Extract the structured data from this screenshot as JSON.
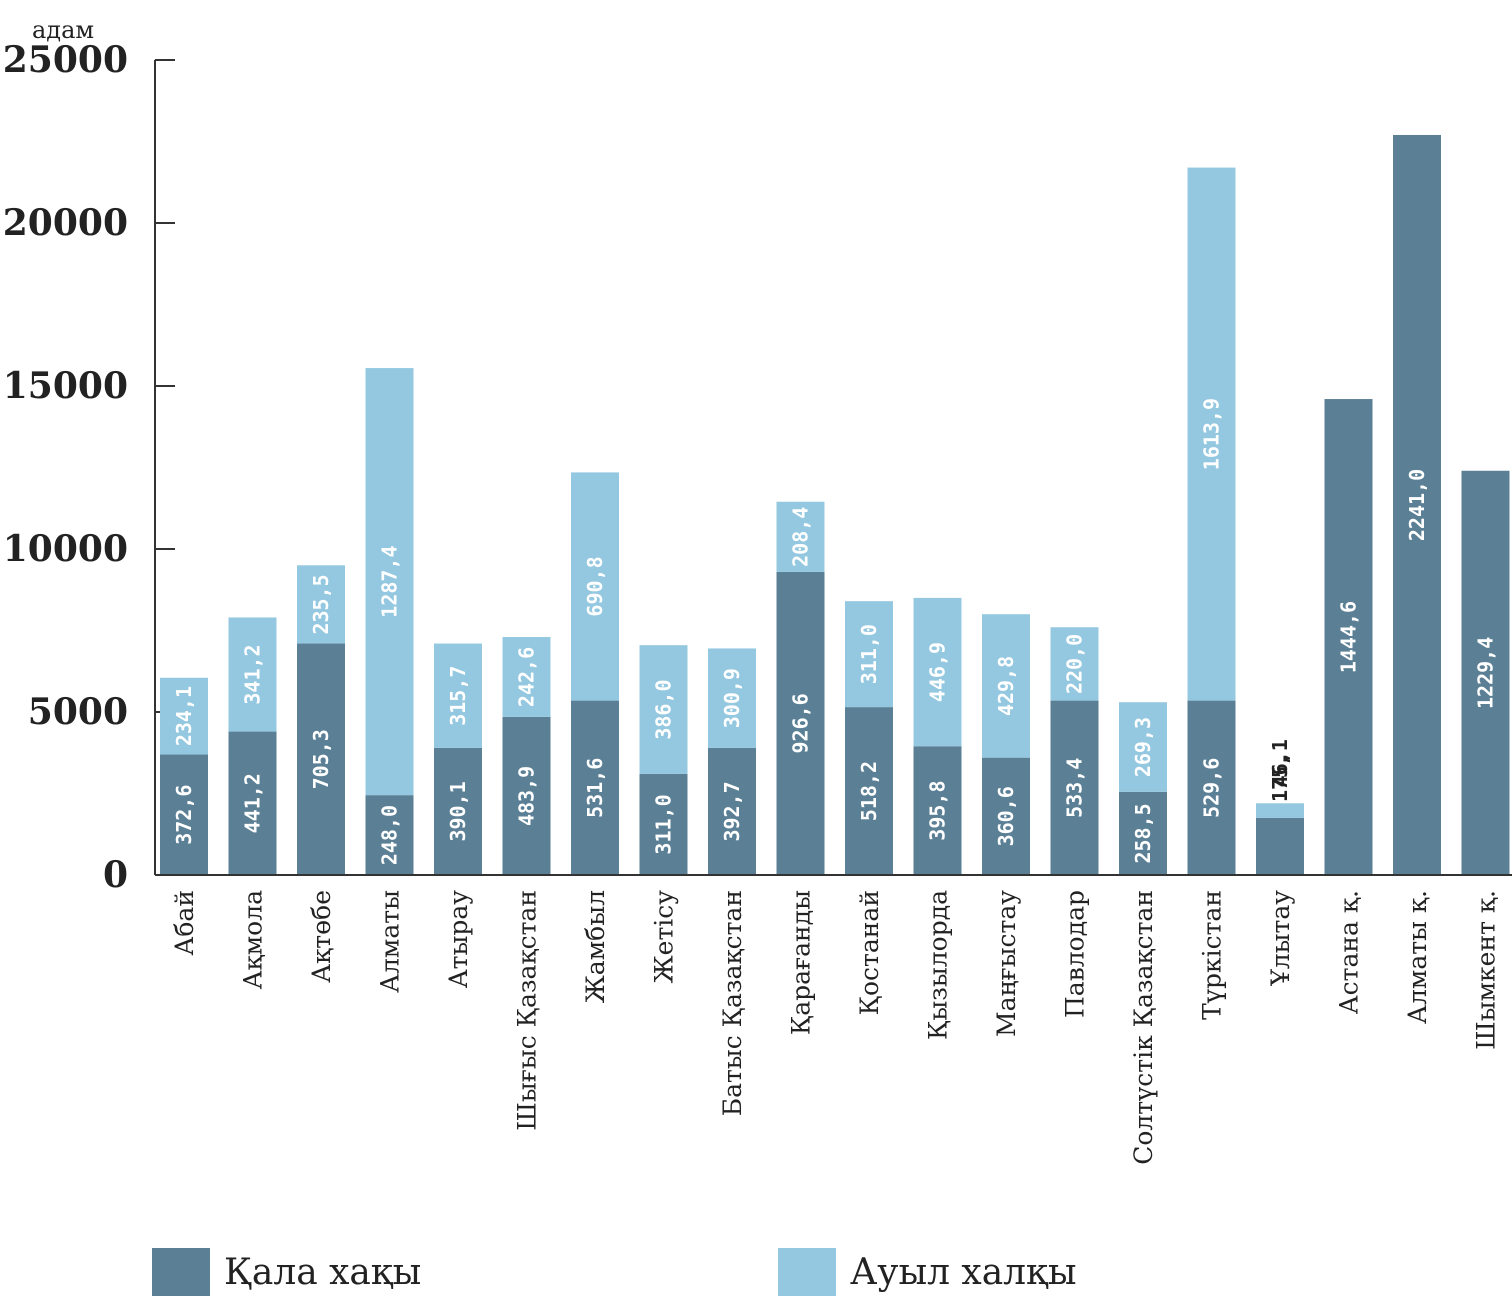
{
  "chart_data": {
    "type": "bar",
    "stacked": true,
    "unit_label": "адам",
    "ylim": [
      0,
      25000
    ],
    "y_ticks": [
      0,
      5000,
      10000,
      15000,
      20000,
      25000
    ],
    "grid": false,
    "legend_position": "bottom",
    "categories": [
      "Абай",
      "Ақмола",
      "Ақтөбе",
      "Алматы",
      "Атырау",
      "Шығыс Қазақстан",
      "Жамбыл",
      "Жетісу",
      "Батыс Қазақстан",
      "Қарағанды",
      "Қостанай",
      "Қызылорда",
      "Маңғыстау",
      "Павлодар",
      "Солтүстік Қазақстан",
      "Түркістан",
      "Ұлытау",
      "Астана қ.",
      "Алматы қ.",
      "Шымкент қ."
    ],
    "series": [
      {
        "name": "Қала хақы",
        "color": "#5b8096",
        "values": [
          3700,
          4400,
          7100,
          2450,
          3900,
          4850,
          5350,
          3100,
          3900,
          9300,
          5150,
          3950,
          3600,
          5350,
          2550,
          5350,
          1750,
          14600,
          22700,
          12400
        ],
        "labels": [
          "372,6",
          "441,2",
          "705,3",
          "248,0",
          "390,1",
          "483,9",
          "531,6",
          "311,0",
          "392,7",
          "926,6",
          "518,2",
          "395,8",
          "360,6",
          "533,4",
          "258,5",
          "529,6",
          "175,",
          "1444,6",
          "2241,0",
          "1229,4"
        ]
      },
      {
        "name": "Ауыл халқы",
        "color": "#94c8e0",
        "values": [
          2350,
          3500,
          2400,
          13100,
          3200,
          2450,
          7000,
          3950,
          3050,
          2150,
          3250,
          4550,
          4400,
          2250,
          2750,
          16350,
          450,
          0,
          0,
          0
        ],
        "labels": [
          "234,1",
          "341,2",
          "235,5",
          "1287,4",
          "315,7",
          "242,6",
          "690,8",
          "386,0",
          "300,9",
          "208,4",
          "311,0",
          "446,9",
          "429,8",
          "220,0",
          "269,3",
          "1613,9",
          "46,1",
          "",
          "",
          ""
        ]
      }
    ]
  }
}
